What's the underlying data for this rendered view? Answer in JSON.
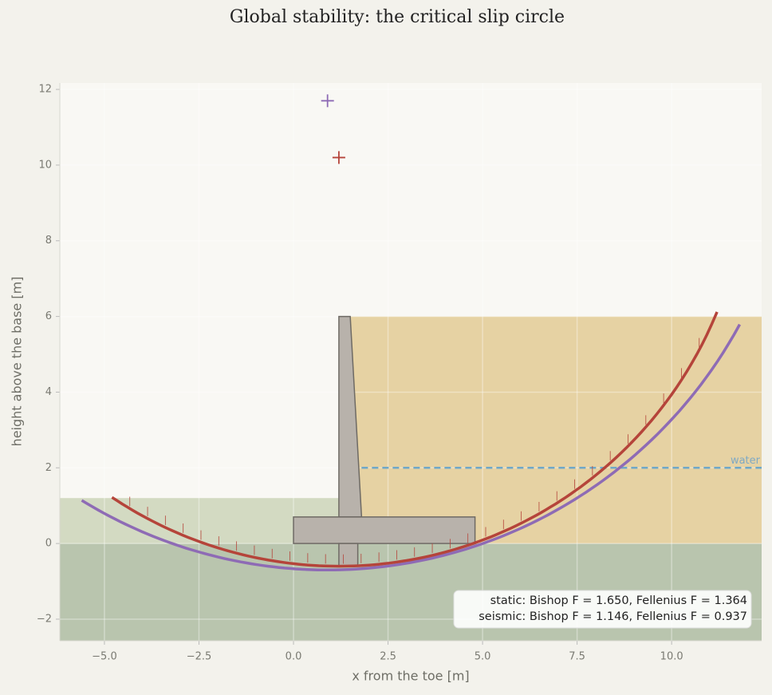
{
  "chart_data": {
    "type": "slope-stability",
    "title": "Global stability: the critical slip circle",
    "x_label": "x from the toe [m]",
    "y_label": "height above the base [m]",
    "xlim": [
      -6.18,
      12.38
    ],
    "ylim": [
      -2.57,
      12.17
    ],
    "xticks": [
      {
        "value": -5,
        "label": "−5.0"
      },
      {
        "value": -2.5,
        "label": "−2.5"
      },
      {
        "value": 0,
        "label": "0.0"
      },
      {
        "value": 2.5,
        "label": "2.5"
      },
      {
        "value": 5,
        "label": "5.0"
      },
      {
        "value": 7.5,
        "label": "7.5"
      },
      {
        "value": 10,
        "label": "10.0"
      }
    ],
    "yticks": [
      {
        "value": -2,
        "label": "−2"
      },
      0,
      2,
      4,
      6,
      8,
      10,
      12
    ],
    "grid": true,
    "backfill_top": 6,
    "front_level": 1.2,
    "water_level": 2,
    "water_label": "water",
    "wall": {
      "stem": [
        [
          1.2,
          6
        ],
        [
          1.5,
          6
        ],
        [
          1.8,
          0.7
        ],
        [
          1.2,
          0.7
        ]
      ],
      "base": [
        [
          0,
          0
        ],
        [
          4.8,
          0
        ],
        [
          4.8,
          0.7
        ],
        [
          0,
          0.7
        ]
      ],
      "key": [
        [
          1.2,
          -0.6
        ],
        [
          1.7,
          -0.6
        ],
        [
          1.7,
          0
        ],
        [
          1.2,
          0
        ]
      ]
    },
    "slip_circles": [
      {
        "color": "#8e6bb5",
        "center": [
          0.9,
          11.7
        ],
        "radius": 12.4,
        "x_range": [
          -5.6,
          11.8
        ]
      },
      {
        "color": "#b5443a",
        "center": [
          1.2,
          10.2
        ],
        "radius": 10.8,
        "x_range": [
          -4.8,
          11.2
        ]
      }
    ],
    "annotation": [
      "static: Bishop F = 1.650, Fellenius F = 1.364",
      "seismic: Bishop F = 1.146, Fellenius F = 0.937"
    ]
  }
}
